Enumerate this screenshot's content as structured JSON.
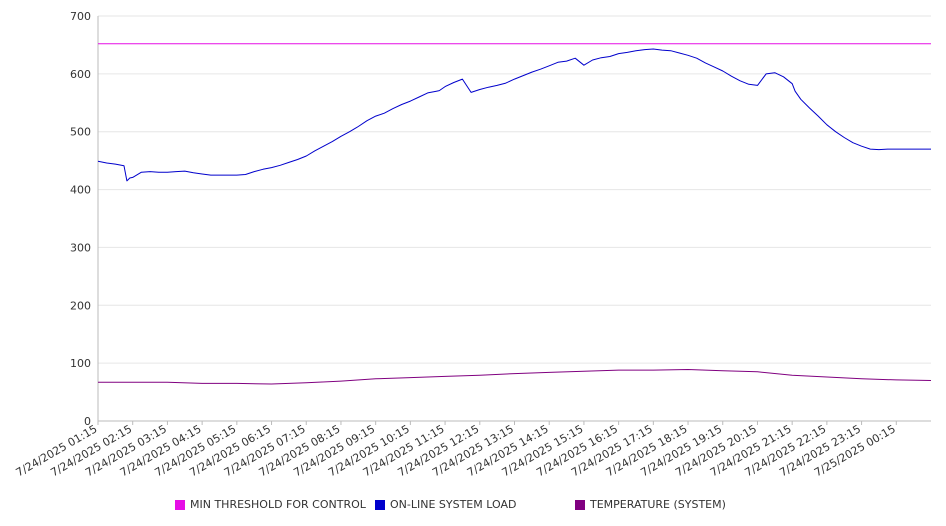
{
  "chart_data": {
    "type": "line",
    "title": "",
    "xlabel": "",
    "ylabel": "",
    "ylim": [
      0,
      700
    ],
    "yticks": [
      0,
      100,
      200,
      300,
      400,
      500,
      600,
      700
    ],
    "grid": true,
    "legend_position": "bottom",
    "x_tick_labels": [
      "7/24/2025 01:15",
      "7/24/2025 02:15",
      "7/24/2025 03:15",
      "7/24/2025 04:15",
      "7/24/2025 05:15",
      "7/24/2025 06:15",
      "7/24/2025 07:15",
      "7/24/2025 08:15",
      "7/24/2025 09:15",
      "7/24/2025 10:15",
      "7/24/2025 11:15",
      "7/24/2025 12:15",
      "7/24/2025 13:15",
      "7/24/2025 14:15",
      "7/24/2025 15:15",
      "7/24/2025 16:15",
      "7/24/2025 17:15",
      "7/24/2025 18:15",
      "7/24/2025 19:15",
      "7/24/2025 20:15",
      "7/24/2025 21:15",
      "7/24/2025 22:15",
      "7/24/2025 23:15",
      "7/25/2025 00:15"
    ],
    "x_start": "7/24/2025 01:15",
    "x_end": "7/25/2025 01:15",
    "series": [
      {
        "name": "MIN THRESHOLD FOR CONTROL",
        "color": "#e60ee6",
        "x": [
          "7/24/2025 01:15",
          "7/25/2025 01:15"
        ],
        "values": [
          652,
          652
        ]
      },
      {
        "name": "ON-LINE SYSTEM LOAD",
        "color": "#0000cc",
        "x": [
          "7/24/2025 01:15",
          "7/24/2025 01:30",
          "7/24/2025 01:45",
          "7/24/2025 02:00",
          "7/24/2025 02:05",
          "7/24/2025 02:10",
          "7/24/2025 02:15",
          "7/24/2025 02:30",
          "7/24/2025 02:45",
          "7/24/2025 03:00",
          "7/24/2025 03:15",
          "7/24/2025 03:30",
          "7/24/2025 03:45",
          "7/24/2025 04:00",
          "7/24/2025 04:15",
          "7/24/2025 04:30",
          "7/24/2025 04:45",
          "7/24/2025 05:00",
          "7/24/2025 05:15",
          "7/24/2025 05:30",
          "7/24/2025 05:45",
          "7/24/2025 06:00",
          "7/24/2025 06:15",
          "7/24/2025 06:30",
          "7/24/2025 06:45",
          "7/24/2025 07:00",
          "7/24/2025 07:15",
          "7/24/2025 07:30",
          "7/24/2025 07:45",
          "7/24/2025 08:00",
          "7/24/2025 08:15",
          "7/24/2025 08:30",
          "7/24/2025 08:45",
          "7/24/2025 09:00",
          "7/24/2025 09:15",
          "7/24/2025 09:30",
          "7/24/2025 09:45",
          "7/24/2025 10:00",
          "7/24/2025 10:15",
          "7/24/2025 10:30",
          "7/24/2025 10:45",
          "7/24/2025 11:00",
          "7/24/2025 11:05",
          "7/24/2025 11:15",
          "7/24/2025 11:30",
          "7/24/2025 11:45",
          "7/24/2025 12:00",
          "7/24/2025 12:15",
          "7/24/2025 12:30",
          "7/24/2025 12:45",
          "7/24/2025 13:00",
          "7/24/2025 13:15",
          "7/24/2025 13:30",
          "7/24/2025 13:45",
          "7/24/2025 14:00",
          "7/24/2025 14:15",
          "7/24/2025 14:30",
          "7/24/2025 14:45",
          "7/24/2025 15:00",
          "7/24/2025 15:15",
          "7/24/2025 15:30",
          "7/24/2025 15:45",
          "7/24/2025 16:00",
          "7/24/2025 16:15",
          "7/24/2025 16:30",
          "7/24/2025 16:45",
          "7/24/2025 17:00",
          "7/24/2025 17:15",
          "7/24/2025 17:30",
          "7/24/2025 17:45",
          "7/24/2025 18:00",
          "7/24/2025 18:15",
          "7/24/2025 18:30",
          "7/24/2025 18:45",
          "7/24/2025 19:00",
          "7/24/2025 19:15",
          "7/24/2025 19:30",
          "7/24/2025 19:45",
          "7/24/2025 20:00",
          "7/24/2025 20:15",
          "7/24/2025 20:30",
          "7/24/2025 20:45",
          "7/24/2025 21:00",
          "7/24/2025 21:15",
          "7/24/2025 21:20",
          "7/24/2025 21:30",
          "7/24/2025 21:45",
          "7/24/2025 22:00",
          "7/24/2025 22:15",
          "7/24/2025 22:30",
          "7/24/2025 22:45",
          "7/24/2025 23:00",
          "7/24/2025 23:15",
          "7/24/2025 23:30",
          "7/24/2025 23:45",
          "7/25/2025 00:00",
          "7/25/2025 00:15",
          "7/25/2025 00:30",
          "7/25/2025 00:45",
          "7/25/2025 01:00",
          "7/25/2025 01:15"
        ],
        "values": [
          449,
          446,
          444,
          441,
          415,
          420,
          421,
          430,
          431,
          430,
          430,
          431,
          432,
          429,
          427,
          425,
          425,
          425,
          425,
          426,
          431,
          435,
          438,
          442,
          447,
          452,
          458,
          467,
          475,
          483,
          492,
          500,
          509,
          519,
          527,
          532,
          540,
          547,
          553,
          560,
          567,
          570,
          571,
          578,
          585,
          591,
          568,
          573,
          577,
          580,
          584,
          591,
          597,
          603,
          608,
          614,
          620,
          622,
          627,
          615,
          624,
          628,
          630,
          635,
          637,
          640,
          642,
          643,
          641,
          640,
          636,
          632,
          627,
          619,
          612,
          605,
          596,
          588,
          582,
          580,
          600,
          602,
          595,
          583,
          570,
          556,
          541,
          527,
          512,
          500,
          490,
          481,
          475,
          470,
          469,
          470,
          470,
          470,
          470,
          470,
          470
        ]
      },
      {
        "name": "TEMPERATURE (SYSTEM)",
        "color": "#800080",
        "x": [
          "7/24/2025 01:15",
          "7/24/2025 03:15",
          "7/24/2025 04:15",
          "7/24/2025 05:15",
          "7/24/2025 06:15",
          "7/24/2025 07:15",
          "7/24/2025 08:15",
          "7/24/2025 09:15",
          "7/24/2025 10:15",
          "7/24/2025 11:15",
          "7/24/2025 12:15",
          "7/24/2025 13:15",
          "7/24/2025 14:15",
          "7/24/2025 15:15",
          "7/24/2025 16:15",
          "7/24/2025 17:15",
          "7/24/2025 18:15",
          "7/24/2025 19:15",
          "7/24/2025 20:15",
          "7/24/2025 21:15",
          "7/24/2025 22:15",
          "7/24/2025 23:15",
          "7/25/2025 00:15",
          "7/25/2025 01:15"
        ],
        "values": [
          67,
          67,
          65,
          65,
          64,
          66,
          69,
          73,
          75,
          77,
          79,
          82,
          84,
          86,
          88,
          88,
          89,
          87,
          85,
          79,
          76,
          73,
          71,
          70
        ]
      }
    ]
  },
  "legend": {
    "items": [
      {
        "label": "MIN THRESHOLD FOR CONTROL",
        "color": "#e60ee6"
      },
      {
        "label": "ON-LINE SYSTEM LOAD",
        "color": "#0000cc"
      },
      {
        "label": "TEMPERATURE (SYSTEM)",
        "color": "#800080"
      }
    ]
  }
}
